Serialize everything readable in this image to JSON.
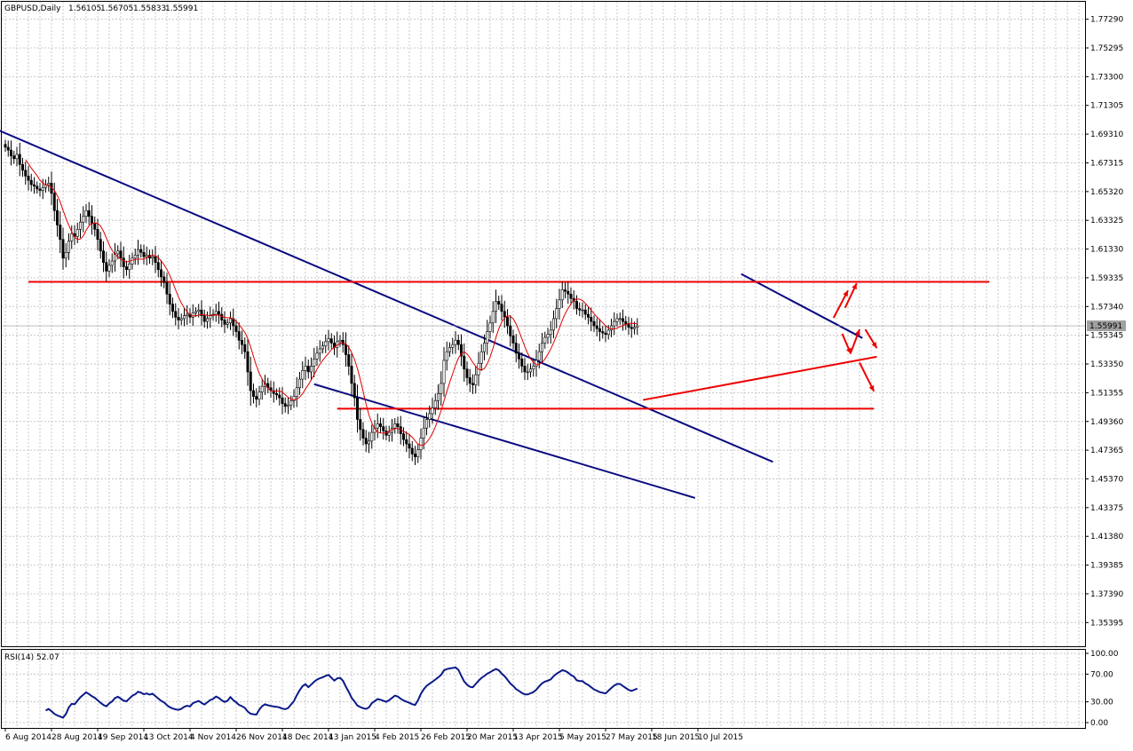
{
  "chart_data": {
    "type": "candlestick",
    "title": "GBPUSD,Daily",
    "ohlc_header": {
      "open": "1.56105",
      "high": "1.56705",
      "low": "1.55833",
      "close": "1.55991"
    },
    "current_price_label": "1.55991",
    "ylim": [
      1.3375,
      1.785
    ],
    "y_ticks": [
      "1.77290",
      "1.75295",
      "1.73300",
      "1.71305",
      "1.69310",
      "1.67315",
      "1.65320",
      "1.63325",
      "1.61330",
      "1.59335",
      "1.57340",
      "1.55345",
      "1.53350",
      "1.51355",
      "1.49360",
      "1.47365",
      "1.45370",
      "1.43375",
      "1.41380",
      "1.39385",
      "1.37390",
      "1.35395"
    ],
    "x_ticks": [
      "6 Aug 2014",
      "28 Aug 2014",
      "19 Sep 2014",
      "13 Oct 2014",
      "4 Nov 2014",
      "26 Nov 2014",
      "18 Dec 2014",
      "13 Jan 2015",
      "4 Feb 2015",
      "26 Feb 2015",
      "20 Mar 2015",
      "13 Apr 2015",
      "5 May 2015",
      "27 May 2015",
      "18 Jun 2015",
      "10 Jul 2015"
    ],
    "x_tick_bar_index": [
      0,
      16,
      32,
      48,
      64,
      80,
      96,
      112,
      128,
      144,
      160,
      176,
      192,
      208,
      224,
      240
    ],
    "closes": [
      1.684,
      1.682,
      1.678,
      1.676,
      1.679,
      1.672,
      1.668,
      1.664,
      1.661,
      1.658,
      1.657,
      1.655,
      1.654,
      1.656,
      1.658,
      1.659,
      1.652,
      1.64,
      1.63,
      1.62,
      1.607,
      1.611,
      1.619,
      1.624,
      1.622,
      1.627,
      1.632,
      1.636,
      1.64,
      1.636,
      1.631,
      1.627,
      1.62,
      1.612,
      1.604,
      1.598,
      1.602,
      1.605,
      1.61,
      1.612,
      1.607,
      1.601,
      1.599,
      1.603,
      1.607,
      1.609,
      1.613,
      1.611,
      1.608,
      1.609,
      1.607,
      1.608,
      1.604,
      1.599,
      1.594,
      1.59,
      1.582,
      1.575,
      1.57,
      1.566,
      1.564,
      1.565,
      1.567,
      1.568,
      1.566,
      1.569,
      1.57,
      1.571,
      1.567,
      1.563,
      1.565,
      1.567,
      1.568,
      1.57,
      1.568,
      1.564,
      1.561,
      1.562,
      1.565,
      1.56,
      1.556,
      1.55,
      1.547,
      1.542,
      1.528,
      1.515,
      1.511,
      1.509,
      1.514,
      1.518,
      1.52,
      1.517,
      1.515,
      1.513,
      1.512,
      1.51,
      1.506,
      1.504,
      1.505,
      1.508,
      1.511,
      1.517,
      1.523,
      1.529,
      1.532,
      1.528,
      1.532,
      1.537,
      1.541,
      1.544,
      1.546,
      1.549,
      1.551,
      1.548,
      1.545,
      1.549,
      1.55,
      1.547,
      1.54,
      1.532,
      1.52,
      1.51,
      1.495,
      1.488,
      1.482,
      1.478,
      1.48,
      1.486,
      1.489,
      1.492,
      1.49,
      1.487,
      1.484,
      1.486,
      1.489,
      1.492,
      1.49,
      1.485,
      1.481,
      1.478,
      1.475,
      1.471,
      1.469,
      1.474,
      1.482,
      1.489,
      1.495,
      1.499,
      1.503,
      1.508,
      1.513,
      1.52,
      1.536,
      1.542,
      1.545,
      1.547,
      1.55,
      1.547,
      1.539,
      1.53,
      1.524,
      1.52,
      1.519,
      1.526,
      1.534,
      1.542,
      1.548,
      1.556,
      1.562,
      1.57,
      1.577,
      1.575,
      1.57,
      1.566,
      1.56,
      1.553,
      1.548,
      1.541,
      1.537,
      1.532,
      1.528,
      1.528,
      1.53,
      1.532,
      1.536,
      1.542,
      1.548,
      1.552,
      1.554,
      1.557,
      1.565,
      1.572,
      1.578,
      1.585,
      1.584,
      1.582,
      1.579,
      1.577,
      1.572,
      1.571,
      1.571,
      1.568,
      1.566,
      1.563,
      1.56,
      1.558,
      1.556,
      1.555,
      1.554,
      1.557,
      1.56,
      1.563,
      1.565,
      1.565,
      1.563,
      1.561,
      1.559,
      1.558,
      1.559,
      1.56
    ],
    "ma_period": 8,
    "rsi": {
      "label": "RSI(14) 52.07",
      "y_ticks": [
        "100.00",
        "70.00",
        "30.00",
        "0.00"
      ],
      "levels": [
        100,
        70,
        30,
        0
      ]
    },
    "annotations": {
      "blue_trend_lines": [
        {
          "from": {
            "bar": -2,
            "price": 1.6955
          },
          "to": {
            "bar": 266,
            "price": 1.4655
          }
        },
        {
          "from": {
            "bar": 107,
            "price": 1.5195
          },
          "to": {
            "bar": 239,
            "price": 1.4405
          }
        },
        {
          "from": {
            "bar": 255,
            "price": 1.596
          },
          "to": {
            "bar": 297,
            "price": 1.5515
          }
        }
      ],
      "red_lines": [
        {
          "from": {
            "bar": 8,
            "price": 1.5905
          },
          "to": {
            "bar": 341,
            "price": 1.5905
          }
        },
        {
          "from": {
            "bar": 115,
            "price": 1.5025
          },
          "to": {
            "bar": 301,
            "price": 1.5025
          }
        },
        {
          "from": {
            "bar": 221,
            "price": 1.5085
          },
          "to": {
            "bar": 302,
            "price": 1.5385
          }
        }
      ],
      "red_arrows": [
        {
          "from": {
            "bar": 287,
            "price": 1.5655
          },
          "to": {
            "bar": 292,
            "price": 1.5845
          }
        },
        {
          "from": {
            "bar": 291,
            "price": 1.5725
          },
          "to": {
            "bar": 295,
            "price": 1.5895
          }
        },
        {
          "from": {
            "bar": 290,
            "price": 1.5545
          },
          "to": {
            "bar": 293,
            "price": 1.5405
          }
        },
        {
          "from": {
            "bar": 293,
            "price": 1.5415
          },
          "to": {
            "bar": 296,
            "price": 1.5575
          }
        },
        {
          "from": {
            "bar": 298,
            "price": 1.5575
          },
          "to": {
            "bar": 302,
            "price": 1.5445
          }
        },
        {
          "from": {
            "bar": 296,
            "price": 1.5345
          },
          "to": {
            "bar": 301,
            "price": 1.5145
          }
        }
      ]
    }
  }
}
